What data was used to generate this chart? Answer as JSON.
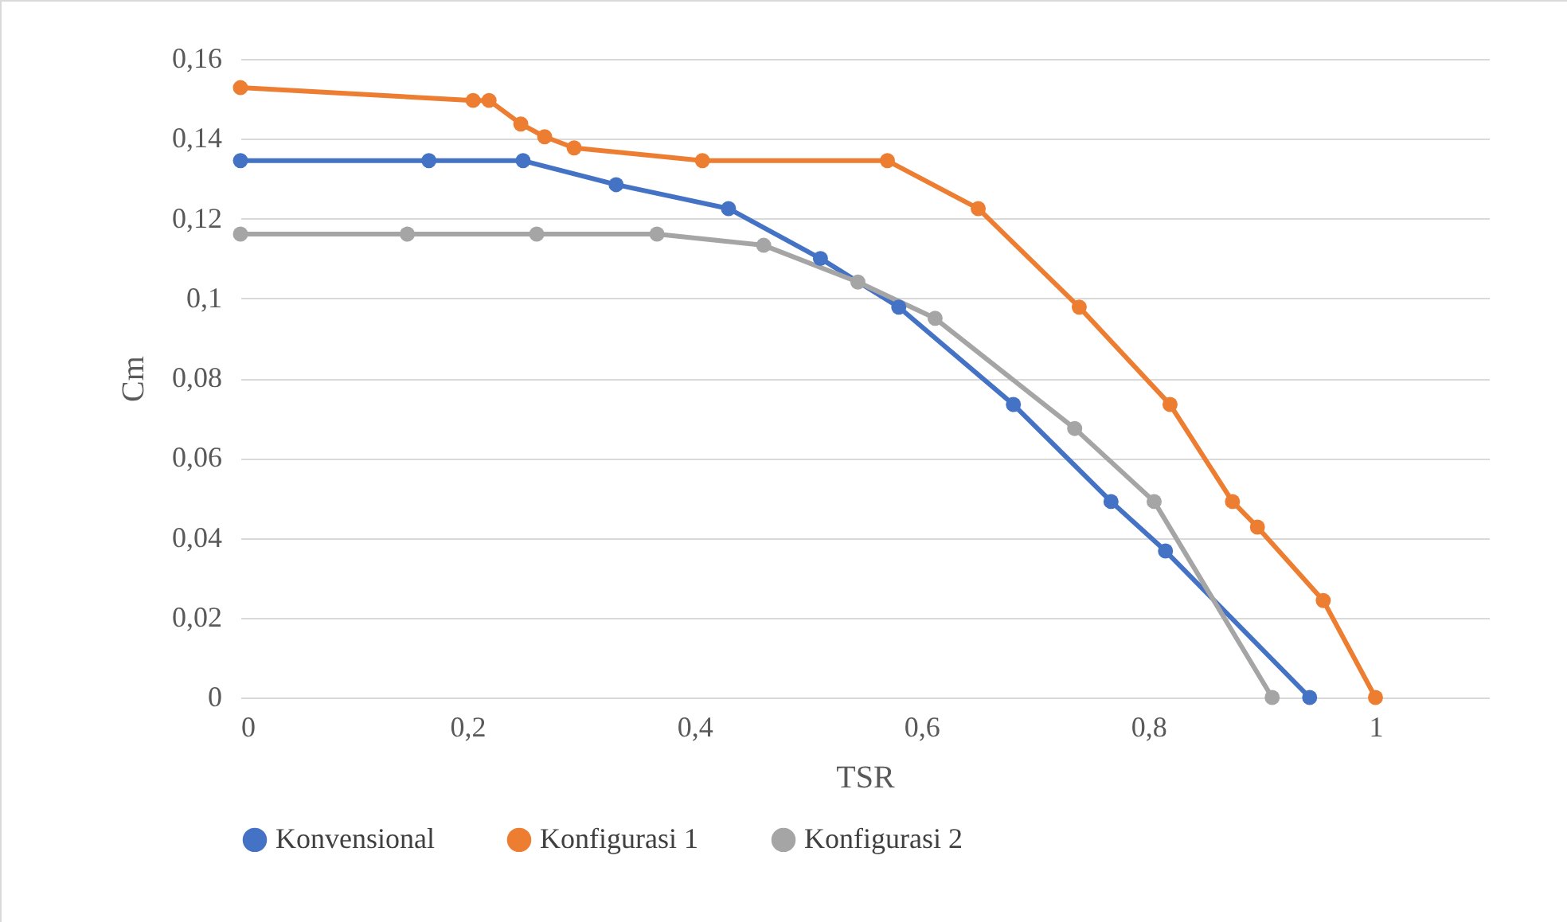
{
  "chart_data": {
    "type": "line",
    "xlabel": "TSR",
    "ylabel": "Cm",
    "xlim": [
      0,
      1.1
    ],
    "ylim": [
      0,
      0.16
    ],
    "xticks": [
      0,
      {
        "value": 0.2,
        "label": "0,2"
      },
      {
        "value": 0.4,
        "label": "0,4"
      },
      {
        "value": 0.6,
        "label": "0,6"
      },
      {
        "value": 0.8,
        "label": "0,8"
      },
      1
    ],
    "yticks": [
      0,
      {
        "value": 0.02,
        "label": "0,02"
      },
      {
        "value": 0.04,
        "label": "0,04"
      },
      {
        "value": 0.06,
        "label": "0,06"
      },
      {
        "value": 0.08,
        "label": "0,08"
      },
      {
        "value": 0.1,
        "label": "0,1"
      },
      {
        "value": 0.12,
        "label": "0,12"
      },
      {
        "value": 0.14,
        "label": "0,14"
      },
      {
        "value": 0.16,
        "label": "0,16"
      }
    ],
    "grid": "y",
    "legend": "bottom",
    "marker": "circle",
    "line_style": "solid",
    "series": [
      {
        "name": "Konvensional",
        "color": "#4472c4",
        "x": [
          0,
          0.166,
          0.249,
          0.331,
          0.43,
          0.511,
          0.58,
          0.681,
          0.767,
          0.815,
          0.942
        ],
        "values": [
          0.1345,
          0.1345,
          0.1345,
          0.1285,
          0.1225,
          0.11,
          0.0978,
          0.0734,
          0.0491,
          0.0367,
          0
        ]
      },
      {
        "name": "Konfigurasi 1",
        "color": "#ed7d31",
        "x": [
          0,
          0.205,
          0.219,
          0.247,
          0.268,
          0.294,
          0.407,
          0.57,
          0.65,
          0.739,
          0.819,
          0.874,
          0.896,
          0.954,
          1.0
        ],
        "values": [
          0.1528,
          0.1496,
          0.1496,
          0.1437,
          0.1405,
          0.1377,
          0.1345,
          0.1345,
          0.1225,
          0.0978,
          0.0734,
          0.0491,
          0.0427,
          0.0243,
          0
        ]
      },
      {
        "name": "Konfigurasi 2",
        "color": "#a5a5a5",
        "x": [
          0,
          0.147,
          0.261,
          0.367,
          0.461,
          0.544,
          0.612,
          0.735,
          0.805,
          0.909
        ],
        "values": [
          0.1161,
          0.1161,
          0.1161,
          0.1161,
          0.1133,
          0.1041,
          0.095,
          0.0674,
          0.0491,
          0
        ]
      }
    ]
  }
}
